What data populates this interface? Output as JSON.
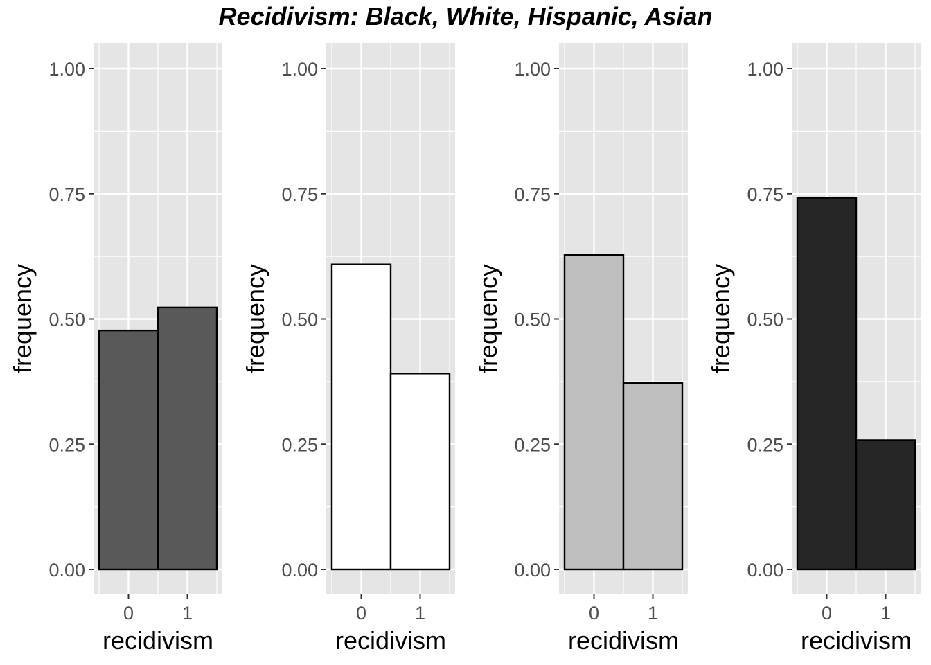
{
  "chart_data": {
    "type": "bar",
    "title": "Recidivism: Black, White, Hispanic, Asian",
    "categories": [
      "0",
      "1"
    ],
    "xlabel": "recidivism",
    "ylabel": "frequency",
    "ylim": [
      0,
      1
    ],
    "yticks": [
      "0.00",
      "0.25",
      "0.50",
      "0.75",
      "1.00"
    ],
    "grid": true,
    "panels": [
      {
        "values": [
          0.477,
          0.523
        ],
        "fill": "#595959"
      },
      {
        "values": [
          0.609,
          0.391
        ],
        "fill": "#ffffff"
      },
      {
        "values": [
          0.628,
          0.372
        ],
        "fill": "#bebebe"
      },
      {
        "values": [
          0.742,
          0.258
        ],
        "fill": "#262626"
      }
    ],
    "colors": {
      "panel_background": "#e5e5e5",
      "gridline": "#ffffff",
      "bar_outline": "#000000",
      "tick_text": "#4d4d4d"
    }
  }
}
